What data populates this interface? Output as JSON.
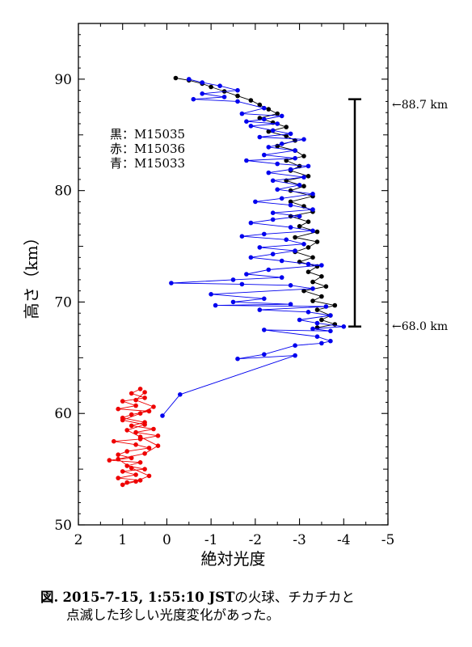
{
  "chart_data": {
    "type": "scatter",
    "xlabel": "絶対光度",
    "ylabel": "高さ（km）",
    "xlim": [
      2,
      -5
    ],
    "ylim": [
      50,
      95
    ],
    "x_ticks": [
      "2",
      "1",
      "0",
      "-1",
      "-2",
      "-3",
      "-4",
      "-5"
    ],
    "y_ticks": [
      "50",
      "60",
      "70",
      "80",
      "90"
    ],
    "legend": [
      "黒：M15035",
      "赤：M15036",
      "青：M15033"
    ],
    "legend_position": "upper-left",
    "annotations": {
      "top_label": "←88.7 km",
      "bottom_label": "←68.0 km",
      "range_top": 88.2,
      "range_bottom": 67.8
    },
    "series": [
      {
        "name": "M15035",
        "color": "#000000",
        "points": [
          [
            -0.2,
            90.1
          ],
          [
            -0.5,
            89.9
          ],
          [
            -0.8,
            89.6
          ],
          [
            -1.0,
            89.3
          ],
          [
            -1.3,
            88.9
          ],
          [
            -1.6,
            88.5
          ],
          [
            -1.9,
            88.1
          ],
          [
            -2.1,
            87.7
          ],
          [
            -2.3,
            87.3
          ],
          [
            -2.5,
            86.9
          ],
          [
            -2.1,
            86.5
          ],
          [
            -2.4,
            86.1
          ],
          [
            -2.7,
            85.7
          ],
          [
            -2.3,
            85.3
          ],
          [
            -2.7,
            84.9
          ],
          [
            -2.9,
            84.5
          ],
          [
            -2.5,
            84.0
          ],
          [
            -2.9,
            83.6
          ],
          [
            -3.1,
            83.1
          ],
          [
            -2.7,
            82.7
          ],
          [
            -3.0,
            82.2
          ],
          [
            -2.8,
            81.8
          ],
          [
            -3.2,
            81.3
          ],
          [
            -2.7,
            80.9
          ],
          [
            -3.1,
            80.4
          ],
          [
            -2.8,
            80.0
          ],
          [
            -3.3,
            79.5
          ],
          [
            -2.8,
            79.0
          ],
          [
            -3.1,
            78.6
          ],
          [
            -3.3,
            78.1
          ],
          [
            -2.8,
            77.7
          ],
          [
            -3.2,
            77.2
          ],
          [
            -3.0,
            76.8
          ],
          [
            -3.4,
            76.3
          ],
          [
            -2.9,
            75.8
          ],
          [
            -3.4,
            75.4
          ],
          [
            -3.2,
            74.9
          ],
          [
            -2.9,
            74.5
          ],
          [
            -3.3,
            74.0
          ],
          [
            -3.0,
            73.6
          ],
          [
            -3.4,
            73.2
          ],
          [
            -3.2,
            72.7
          ],
          [
            -3.5,
            72.3
          ],
          [
            -3.3,
            71.8
          ],
          [
            -3.6,
            71.4
          ],
          [
            -3.1,
            71.0
          ],
          [
            -3.5,
            70.5
          ],
          [
            -3.3,
            70.1
          ],
          [
            -3.8,
            69.7
          ],
          [
            -3.4,
            69.3
          ],
          [
            -3.7,
            68.8
          ],
          [
            -3.5,
            68.4
          ],
          [
            -3.8,
            68.0
          ],
          [
            -3.4,
            67.7
          ]
        ]
      },
      {
        "name": "M15033",
        "color": "#0000ee",
        "points": [
          [
            -0.5,
            90.0
          ],
          [
            -0.8,
            89.7
          ],
          [
            -1.2,
            89.4
          ],
          [
            -1.6,
            89.0
          ],
          [
            -0.8,
            88.7
          ],
          [
            -1.3,
            88.4
          ],
          [
            -0.6,
            88.2
          ],
          [
            -1.6,
            88.0
          ],
          [
            -2.2,
            87.4
          ],
          [
            -1.7,
            86.9
          ],
          [
            -2.6,
            86.7
          ],
          [
            -2.2,
            86.4
          ],
          [
            -1.8,
            86.2
          ],
          [
            -2.5,
            86.0
          ],
          [
            -1.9,
            85.8
          ],
          [
            -2.4,
            85.4
          ],
          [
            -2.8,
            85.1
          ],
          [
            -2.1,
            84.8
          ],
          [
            -3.1,
            84.6
          ],
          [
            -2.6,
            84.2
          ],
          [
            -2.3,
            83.9
          ],
          [
            -2.9,
            83.6
          ],
          [
            -2.2,
            83.2
          ],
          [
            -2.9,
            82.9
          ],
          [
            -1.8,
            82.7
          ],
          [
            -2.5,
            82.4
          ],
          [
            -3.2,
            82.2
          ],
          [
            -2.8,
            81.9
          ],
          [
            -2.3,
            81.6
          ],
          [
            -3.1,
            81.2
          ],
          [
            -2.4,
            80.9
          ],
          [
            -3.0,
            80.5
          ],
          [
            -2.5,
            80.1
          ],
          [
            -3.3,
            79.7
          ],
          [
            -2.6,
            79.3
          ],
          [
            -2.0,
            79.0
          ],
          [
            -2.8,
            78.7
          ],
          [
            -3.3,
            78.3
          ],
          [
            -2.4,
            78.0
          ],
          [
            -3.0,
            77.7
          ],
          [
            -2.4,
            77.4
          ],
          [
            -1.9,
            77.1
          ],
          [
            -2.8,
            76.7
          ],
          [
            -3.3,
            76.4
          ],
          [
            -2.2,
            76.1
          ],
          [
            -1.7,
            75.9
          ],
          [
            -2.7,
            75.6
          ],
          [
            -3.1,
            75.2
          ],
          [
            -2.1,
            74.9
          ],
          [
            -2.9,
            74.6
          ],
          [
            -2.4,
            74.3
          ],
          [
            -1.9,
            74.0
          ],
          [
            -2.6,
            73.7
          ],
          [
            -3.2,
            73.4
          ],
          [
            -3.5,
            73.3
          ],
          [
            -2.3,
            72.9
          ],
          [
            -1.8,
            72.5
          ],
          [
            -2.6,
            72.2
          ],
          [
            -1.5,
            72.0
          ],
          [
            -0.1,
            71.7
          ],
          [
            -1.7,
            71.6
          ],
          [
            -2.8,
            71.5
          ],
          [
            -3.3,
            71.2
          ],
          [
            -1.0,
            70.7
          ],
          [
            -2.2,
            70.3
          ],
          [
            -1.5,
            70.0
          ],
          [
            -2.8,
            69.8
          ],
          [
            -1.1,
            69.7
          ],
          [
            -3.6,
            69.6
          ],
          [
            -2.1,
            69.3
          ],
          [
            -3.2,
            69.1
          ],
          [
            -3.7,
            68.8
          ],
          [
            -3.0,
            68.4
          ],
          [
            -3.4,
            68.1
          ],
          [
            -4.0,
            67.8
          ],
          [
            -3.3,
            67.6
          ],
          [
            -3.7,
            67.4
          ],
          [
            -2.2,
            67.5
          ],
          [
            -3.4,
            66.9
          ],
          [
            -3.7,
            66.5
          ],
          [
            -3.5,
            66.3
          ],
          [
            -2.9,
            66.1
          ],
          [
            -2.2,
            65.3
          ],
          [
            -1.6,
            64.9
          ],
          [
            -2.9,
            65.2
          ],
          [
            -0.3,
            61.7
          ],
          [
            0.1,
            59.8
          ]
        ]
      },
      {
        "name": "M15036",
        "color": "#ee0000",
        "points": [
          [
            0.6,
            62.2
          ],
          [
            0.8,
            61.8
          ],
          [
            0.5,
            61.4
          ],
          [
            1.0,
            61.1
          ],
          [
            0.7,
            60.7
          ],
          [
            1.1,
            60.4
          ],
          [
            0.4,
            60.2
          ],
          [
            0.8,
            59.9
          ],
          [
            1.0,
            59.6
          ],
          [
            0.5,
            59.2
          ],
          [
            0.8,
            58.9
          ],
          [
            0.3,
            58.6
          ],
          [
            0.7,
            58.3
          ],
          [
            0.2,
            58.0
          ],
          [
            0.6,
            57.7
          ],
          [
            1.2,
            57.5
          ],
          [
            0.7,
            57.2
          ],
          [
            0.4,
            56.9
          ],
          [
            0.9,
            56.6
          ],
          [
            1.1,
            56.3
          ],
          [
            0.8,
            56.0
          ],
          [
            1.3,
            55.8
          ],
          [
            0.6,
            55.6
          ],
          [
            0.9,
            55.3
          ],
          [
            0.5,
            55.0
          ],
          [
            1.0,
            54.8
          ],
          [
            0.7,
            54.5
          ],
          [
            1.1,
            54.2
          ],
          [
            0.6,
            54.0
          ],
          [
            0.9,
            53.8
          ],
          [
            1.0,
            53.6
          ],
          [
            0.7,
            53.9
          ],
          [
            0.4,
            54.4
          ],
          [
            0.8,
            55.1
          ],
          [
            1.1,
            55.9
          ],
          [
            0.5,
            56.4
          ],
          [
            0.2,
            57.1
          ],
          [
            0.6,
            57.9
          ],
          [
            0.9,
            58.5
          ],
          [
            0.5,
            59.0
          ],
          [
            1.0,
            59.4
          ],
          [
            0.6,
            60.0
          ],
          [
            0.3,
            60.6
          ],
          [
            0.7,
            61.2
          ],
          [
            0.5,
            61.9
          ]
        ]
      }
    ]
  },
  "caption": {
    "prefix": "図.",
    "bold_part": "2015-7-15, 1:55:10 JST",
    "line1_rest": "の火球、チカチカと",
    "line2": "点滅した珍しい光度変化があった。"
  }
}
